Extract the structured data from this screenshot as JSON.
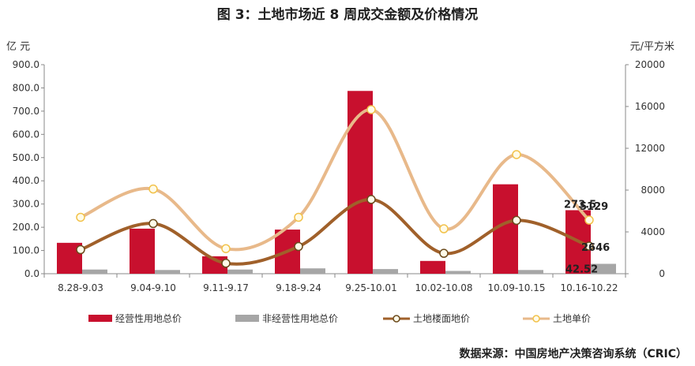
{
  "title": "图 3：土地市场近 8 周成交金额及价格情况",
  "y1_unit": "亿 元",
  "y2_unit": "元/平方米",
  "source": "数据来源：中国房地产决策咨询系统（CRIC）",
  "chart_data": {
    "type": "bar",
    "categories": [
      "8.28-9.03",
      "9.04-9.10",
      "9.11-9.17",
      "9.18-9.24",
      "9.25-10.01",
      "10.02-10.08",
      "10.09-10.15",
      "10.16-10.22"
    ],
    "y1_ticks": [
      "0.0",
      "100.0",
      "200.0",
      "300.0",
      "400.0",
      "500.0",
      "600.0",
      "700.0",
      "800.0",
      "900.0"
    ],
    "y2_ticks": [
      "0",
      "4000",
      "8000",
      "12000",
      "16000",
      "20000"
    ],
    "y1lim": [
      0,
      900
    ],
    "y2lim": [
      0,
      20000
    ],
    "bar_series": [
      {
        "name": "经营性用地总价",
        "color": "#c8102e",
        "values": [
          133,
          194,
          75,
          190,
          787,
          55,
          385,
          273.5
        ]
      },
      {
        "name": "非经营性用地总价",
        "color": "#a6a6a6",
        "values": [
          18,
          16,
          18,
          23,
          20,
          12,
          16,
          42.52
        ]
      }
    ],
    "line_series": [
      {
        "name": "土地楼面地价",
        "color": "#a0602a",
        "values": [
          2300,
          4800,
          1000,
          2600,
          7100,
          1950,
          5100,
          2646
        ]
      },
      {
        "name": "土地单价",
        "color": "#e8b98a",
        "values": [
          5400,
          8100,
          2400,
          5400,
          15700,
          4300,
          11400,
          5129
        ]
      }
    ],
    "data_labels": [
      {
        "text": "273.5",
        "series": 0,
        "index": 7
      },
      {
        "text": "5129",
        "series": 3,
        "index": 7
      },
      {
        "text": "2646",
        "series": 2,
        "index": 7
      },
      {
        "text": "42.52",
        "series": 1,
        "index": 7
      }
    ],
    "legend_position": "bottom",
    "grid": false
  }
}
